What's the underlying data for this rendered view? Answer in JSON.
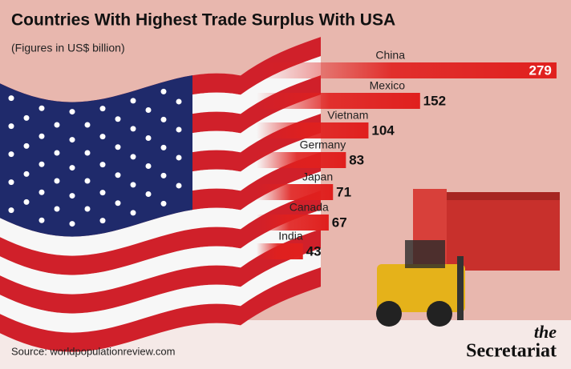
{
  "chart_data": {
    "type": "bar",
    "orientation": "horizontal",
    "title": "Countries With Highest Trade Surplus With USA",
    "subtitle": "(Figures in US$ billion)",
    "categories": [
      "China",
      "Mexico",
      "Vietnam",
      "Germany",
      "Japan",
      "Canada",
      "India"
    ],
    "values": [
      279,
      152,
      104,
      83,
      71,
      67,
      43
    ],
    "color": "#e0201e",
    "source": "Source: worldpopulationreview.com",
    "brand": {
      "top": "the",
      "bottom": "Secretariat"
    }
  }
}
